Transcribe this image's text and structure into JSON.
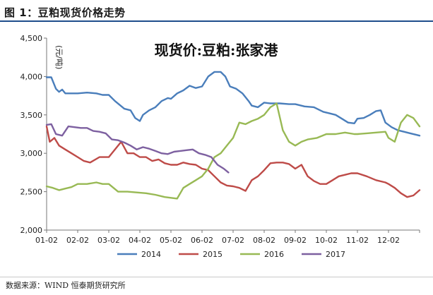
{
  "figure": {
    "title": "图 1：豆粕现货价格走势",
    "source": "数据来源：WIND  恒泰期货研究所"
  },
  "colors": {
    "title_rule": "#1f4e8c",
    "s2014": "#4a7ebb",
    "s2015": "#be4b48",
    "s2016": "#98b954",
    "s2017": "#7d60a0"
  },
  "chart_data": {
    "type": "line",
    "title": "现货价:豆粕:张家港",
    "ylabel": "(元/吨)",
    "xlabel": "",
    "ylim": [
      2000,
      4500
    ],
    "yticks": [
      2000,
      2500,
      3000,
      3500,
      4000,
      4500
    ],
    "ytick_labels": [
      "2,000",
      "2,500",
      "3,000",
      "3,500",
      "4,000",
      "4,500"
    ],
    "xlim": [
      0,
      12
    ],
    "xticks": [
      "01-02",
      "02-02",
      "03-02",
      "04-02",
      "05-02",
      "06-02",
      "07-02",
      "08-02",
      "09-02",
      "10-02",
      "11-02",
      "12-02"
    ],
    "grid": false,
    "legend_position": "bottom",
    "series": [
      {
        "name": "2014",
        "color": "#4a7ebb",
        "x": [
          0.0,
          0.15,
          0.3,
          0.4,
          0.5,
          0.6,
          0.7,
          1.0,
          1.3,
          1.6,
          1.8,
          2.0,
          2.2,
          2.5,
          2.7,
          2.85,
          3.0,
          3.1,
          3.3,
          3.5,
          3.7,
          3.9,
          4.0,
          4.2,
          4.4,
          4.6,
          4.8,
          5.0,
          5.2,
          5.4,
          5.6,
          5.75,
          5.9,
          6.1,
          6.3,
          6.5,
          6.6,
          6.8,
          7.0,
          7.2,
          7.5,
          7.8,
          8.0,
          8.3,
          8.6,
          8.9,
          9.1,
          9.3,
          9.5,
          9.7,
          9.9,
          10.0,
          10.2,
          10.4,
          10.6,
          10.75,
          10.9,
          11.1,
          11.3,
          11.5,
          11.7,
          11.9,
          12.0
        ],
        "values": [
          3990,
          3990,
          3840,
          3800,
          3830,
          3780,
          3780,
          3780,
          3790,
          3780,
          3760,
          3760,
          3680,
          3580,
          3560,
          3460,
          3420,
          3500,
          3560,
          3600,
          3680,
          3720,
          3710,
          3780,
          3820,
          3880,
          3850,
          3870,
          4000,
          4060,
          4060,
          4000,
          3870,
          3840,
          3780,
          3680,
          3620,
          3600,
          3660,
          3650,
          3650,
          3640,
          3640,
          3610,
          3600,
          3540,
          3520,
          3500,
          3450,
          3400,
          3390,
          3450,
          3460,
          3500,
          3550,
          3560,
          3400,
          3340,
          3300,
          3280,
          3260,
          3240,
          3230
        ]
      },
      {
        "name": "2015",
        "color": "#be4b48",
        "x": [
          0.0,
          0.1,
          0.25,
          0.4,
          0.6,
          0.8,
          1.0,
          1.2,
          1.4,
          1.7,
          2.0,
          2.2,
          2.4,
          2.6,
          2.8,
          3.0,
          3.2,
          3.4,
          3.6,
          3.8,
          4.0,
          4.2,
          4.4,
          4.6,
          4.8,
          5.0,
          5.2,
          5.4,
          5.6,
          5.8,
          6.0,
          6.2,
          6.4,
          6.6,
          6.8,
          7.0,
          7.2,
          7.4,
          7.6,
          7.8,
          8.0,
          8.2,
          8.4,
          8.6,
          8.8,
          9.0,
          9.2,
          9.4,
          9.6,
          9.8,
          10.0,
          10.3,
          10.6,
          10.9,
          11.0,
          11.2,
          11.4,
          11.6,
          11.8,
          12.0
        ],
        "values": [
          3350,
          3150,
          3200,
          3100,
          3050,
          3000,
          2950,
          2900,
          2880,
          2950,
          2950,
          3050,
          3150,
          3000,
          3000,
          2950,
          2950,
          2900,
          2920,
          2870,
          2850,
          2850,
          2880,
          2860,
          2850,
          2800,
          2780,
          2700,
          2620,
          2580,
          2570,
          2550,
          2510,
          2650,
          2700,
          2780,
          2870,
          2880,
          2880,
          2860,
          2800,
          2850,
          2700,
          2640,
          2600,
          2600,
          2650,
          2700,
          2720,
          2740,
          2740,
          2700,
          2650,
          2620,
          2600,
          2550,
          2480,
          2430,
          2450,
          2520
        ]
      },
      {
        "name": "2016",
        "color": "#98b954",
        "x": [
          0.0,
          0.2,
          0.4,
          0.6,
          0.8,
          1.0,
          1.3,
          1.6,
          1.8,
          2.0,
          2.3,
          2.6,
          2.9,
          3.2,
          3.5,
          3.8,
          4.0,
          4.2,
          4.4,
          4.6,
          4.8,
          5.0,
          5.2,
          5.4,
          5.6,
          5.8,
          6.0,
          6.2,
          6.4,
          6.6,
          6.8,
          7.0,
          7.2,
          7.4,
          7.6,
          7.8,
          8.0,
          8.2,
          8.4,
          8.7,
          9.0,
          9.3,
          9.6,
          9.9,
          10.0,
          10.3,
          10.6,
          10.9,
          11.0,
          11.2,
          11.4,
          11.6,
          11.8,
          12.0
        ],
        "values": [
          2570,
          2550,
          2520,
          2540,
          2560,
          2600,
          2600,
          2620,
          2600,
          2600,
          2500,
          2500,
          2490,
          2480,
          2460,
          2430,
          2420,
          2410,
          2550,
          2600,
          2650,
          2700,
          2800,
          2950,
          3000,
          3100,
          3200,
          3400,
          3380,
          3420,
          3450,
          3500,
          3600,
          3650,
          3300,
          3150,
          3100,
          3150,
          3180,
          3200,
          3250,
          3250,
          3270,
          3250,
          3250,
          3260,
          3270,
          3280,
          3200,
          3150,
          3400,
          3500,
          3460,
          3350
        ]
      },
      {
        "name": "2017",
        "color": "#7d60a0",
        "x": [
          0.0,
          0.15,
          0.3,
          0.5,
          0.7,
          0.9,
          1.1,
          1.3,
          1.5,
          1.7,
          1.9,
          2.1,
          2.3,
          2.5,
          2.7,
          2.9,
          3.1,
          3.3,
          3.5,
          3.7,
          3.9,
          4.1,
          4.3,
          4.5,
          4.7,
          4.9,
          5.1,
          5.3,
          5.5,
          5.7,
          5.85
        ],
        "values": [
          3370,
          3380,
          3250,
          3230,
          3350,
          3340,
          3330,
          3330,
          3290,
          3280,
          3260,
          3180,
          3170,
          3140,
          3100,
          3050,
          3080,
          3060,
          3030,
          3000,
          2990,
          3020,
          3030,
          3040,
          3050,
          3000,
          2980,
          2950,
          2850,
          2800,
          2750
        ]
      }
    ]
  }
}
